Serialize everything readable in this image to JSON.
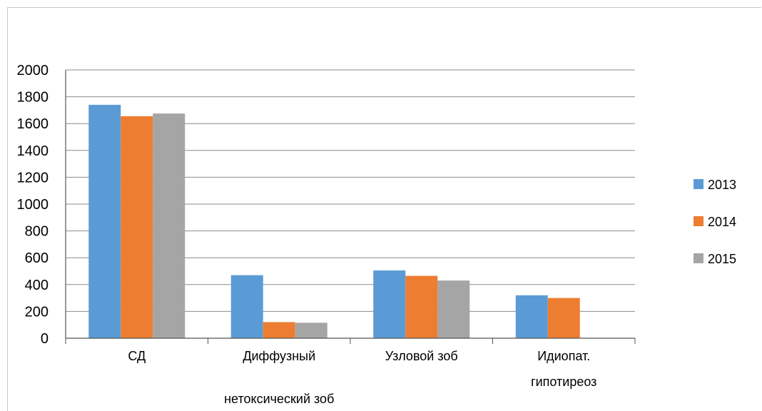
{
  "chart_data": {
    "type": "bar",
    "categories": [
      [
        "СД"
      ],
      [
        "Диффузный",
        "нетоксический зоб"
      ],
      [
        "Узловой зоб"
      ],
      [
        "Идиопат.",
        "гипотиреоз"
      ]
    ],
    "series": [
      {
        "name": "2013",
        "color": "#5b9bd5",
        "values": [
          1740,
          470,
          505,
          320
        ]
      },
      {
        "name": "2014",
        "color": "#ed7d31",
        "values": [
          1655,
          120,
          465,
          300
        ]
      },
      {
        "name": "2015",
        "color": "#a5a5a5",
        "values": [
          1675,
          115,
          430,
          0
        ]
      }
    ],
    "yticks": [
      "0",
      "200",
      "400",
      "600",
      "800",
      "1000",
      "1200",
      "1400",
      "1600",
      "1800",
      "2000"
    ],
    "ylim": [
      0,
      2000
    ],
    "grid": true,
    "legend_position": "right"
  }
}
